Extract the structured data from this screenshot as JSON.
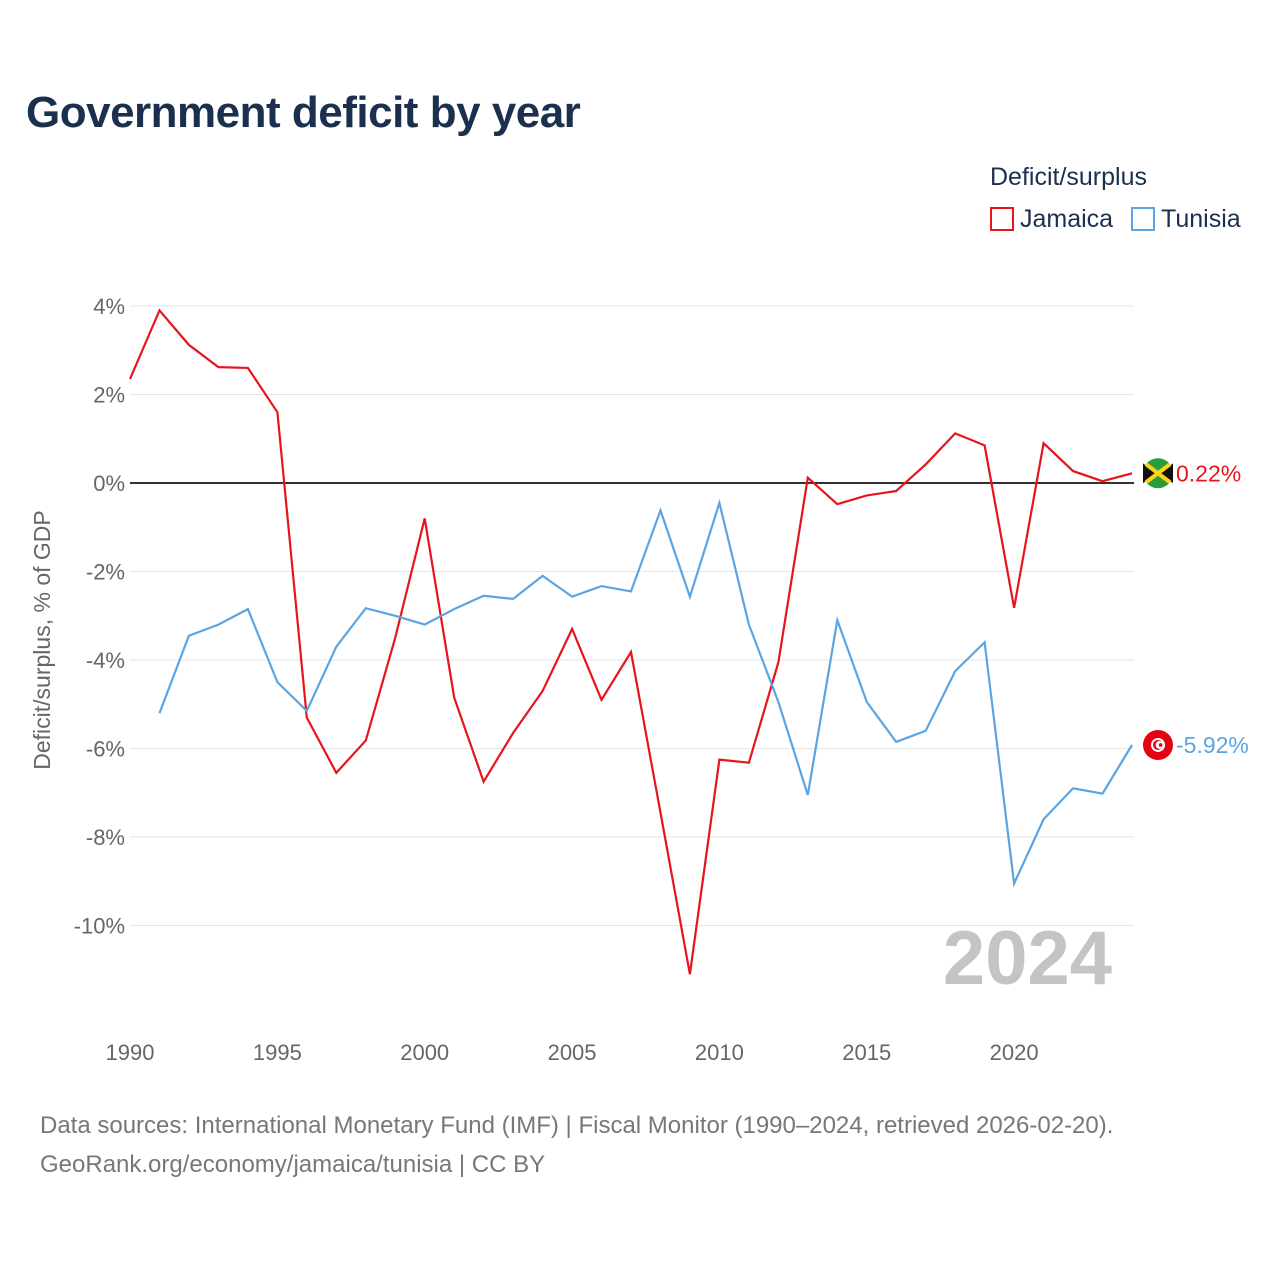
{
  "title": "Government deficit by year",
  "legend": {
    "title": "Deficit/surplus",
    "items": [
      {
        "label": "Jamaica",
        "color": "#e8141c"
      },
      {
        "label": "Tunisia",
        "color": "#5ba4e3"
      }
    ]
  },
  "footer": {
    "line1": "Data sources: International Monetary Fund (IMF) | Fiscal Monitor (1990–2024, retrieved 2026-02-20).",
    "line2": "GeoRank.org/economy/jamaica/tunisia | CC BY"
  },
  "chart_data": {
    "type": "line",
    "title": "Government deficit by year",
    "xlabel": "",
    "ylabel": "Deficit/surplus, % of GDP",
    "xlim": [
      1990,
      2024
    ],
    "ylim": [
      -12,
      4
    ],
    "x_ticks": [
      1990,
      1995,
      2000,
      2005,
      2010,
      2015,
      2020
    ],
    "x_tick_labels": [
      "1990",
      "1995",
      "2000",
      "2005",
      "2010",
      "2015",
      "2020"
    ],
    "y_ticks": [
      4,
      2,
      0,
      -2,
      -4,
      -6,
      -8,
      -10
    ],
    "y_tick_labels": [
      "4%",
      "2%",
      "0%",
      "-2%",
      "-4%",
      "-6%",
      "-8%",
      "-10%"
    ],
    "year_label": "2024",
    "series": [
      {
        "name": "Jamaica",
        "color": "#e8141c",
        "end_label": "0.22%",
        "x": [
          1990,
          1991,
          1992,
          1993,
          1994,
          1995,
          1996,
          1997,
          1998,
          1999,
          2000,
          2001,
          2002,
          2003,
          2004,
          2005,
          2006,
          2007,
          2008,
          2009,
          2010,
          2011,
          2012,
          2013,
          2014,
          2015,
          2016,
          2017,
          2018,
          2019,
          2020,
          2021,
          2022,
          2023,
          2024
        ],
        "values": [
          2.35,
          3.9,
          3.12,
          2.62,
          2.6,
          1.6,
          -5.3,
          -6.55,
          -5.82,
          -3.5,
          -0.8,
          -4.85,
          -6.75,
          -5.65,
          -4.7,
          -3.3,
          -4.9,
          -3.82,
          -7.45,
          -11.1,
          -6.25,
          -6.32,
          -4.05,
          0.12,
          -0.48,
          -0.28,
          -0.18,
          0.42,
          1.12,
          0.85,
          -2.82,
          0.9,
          0.27,
          0.04,
          0.22
        ]
      },
      {
        "name": "Tunisia",
        "color": "#5ba4e3",
        "end_label": "-5.92%",
        "x": [
          1991,
          1992,
          1993,
          1994,
          1995,
          1996,
          1997,
          1998,
          1999,
          2000,
          2001,
          2002,
          2003,
          2004,
          2005,
          2006,
          2007,
          2008,
          2009,
          2010,
          2011,
          2012,
          2013,
          2014,
          2015,
          2016,
          2017,
          2018,
          2019,
          2020,
          2021,
          2022,
          2023,
          2024
        ],
        "values": [
          -5.2,
          -3.45,
          -3.2,
          -2.85,
          -4.5,
          -5.15,
          -3.7,
          -2.83,
          -3.0,
          -3.2,
          -2.85,
          -2.55,
          -2.62,
          -2.1,
          -2.57,
          -2.33,
          -2.45,
          -0.62,
          -2.57,
          -0.45,
          -3.2,
          -4.95,
          -7.05,
          -3.1,
          -4.95,
          -5.85,
          -5.6,
          -4.25,
          -3.6,
          -9.05,
          -7.6,
          -6.9,
          -7.02,
          -5.92
        ]
      }
    ]
  }
}
